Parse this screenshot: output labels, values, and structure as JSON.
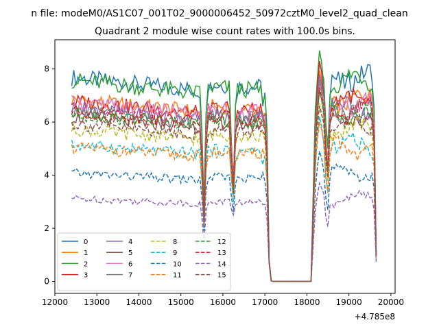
{
  "chart_data": {
    "type": "line",
    "suptitle": "n file: modeM0/AS1C07_001T02_9000006452_50972cztM0_level2_quad_clean",
    "title": "Quadrant 2 module wise count rates with 100.0s bins.",
    "xlabel": "",
    "ylabel": "",
    "x_offset_label": "+4.785e8",
    "xlim": [
      12000,
      20100
    ],
    "ylim": [
      -0.45,
      9.1
    ],
    "xticks": [
      12000,
      13000,
      14000,
      15000,
      16000,
      17000,
      18000,
      19000,
      20000
    ],
    "yticks": [
      0,
      2,
      4,
      6,
      8
    ],
    "grid": false,
    "legend": {
      "placement": "lower-left",
      "columns": 4
    },
    "series": [
      {
        "name": "0",
        "color": "#1f77b4",
        "dash": "solid",
        "base": 7.25,
        "dip": [
          2.7,
          3.3,
          6.6
        ],
        "peak": 8.3
      },
      {
        "name": "1",
        "color": "#ff7f0e",
        "dash": "solid",
        "base": 6.45,
        "dip": [
          2.4,
          3.6,
          6.3
        ],
        "peak": 7.95
      },
      {
        "name": "2",
        "color": "#2ca02c",
        "dash": "solid",
        "base": 7.15,
        "dip": [
          2.9,
          3.5,
          6.7
        ],
        "peak": 8.7
      },
      {
        "name": "3",
        "color": "#d62728",
        "dash": "solid",
        "base": 6.4,
        "dip": [
          2.6,
          3.8,
          6.2
        ],
        "peak": 8.3
      },
      {
        "name": "4",
        "color": "#9467bd",
        "dash": "solid",
        "base": 6.15,
        "dip": [
          2.3,
          3.4,
          6.1
        ],
        "peak": 7.8
      },
      {
        "name": "5",
        "color": "#8c564b",
        "dash": "solid",
        "base": 5.85,
        "dip": [
          2.4,
          3.5,
          5.9
        ],
        "peak": 7.2
      },
      {
        "name": "6",
        "color": "#e377c2",
        "dash": "solid",
        "base": 6.35,
        "dip": [
          2.5,
          3.7,
          6.2
        ],
        "peak": 7.5
      },
      {
        "name": "7",
        "color": "#7f7f7f",
        "dash": "solid",
        "base": 6.05,
        "dip": [
          2.4,
          3.5,
          6.3
        ],
        "peak": 7.6
      },
      {
        "name": "8",
        "color": "#bcbd22",
        "dash": "dashed",
        "base": 5.4,
        "dip": [
          2.1,
          3.4,
          5.6
        ],
        "peak": 6.7
      },
      {
        "name": "9",
        "color": "#17becf",
        "dash": "dashed",
        "base": 4.85,
        "dip": [
          2.0,
          3.0,
          4.4
        ],
        "peak": 6.2
      },
      {
        "name": "10",
        "color": "#1f77b4",
        "dash": "dashed",
        "base": 3.85,
        "dip": [
          1.9,
          2.6,
          4.1
        ],
        "peak": 4.9
      },
      {
        "name": "11",
        "color": "#ff7f0e",
        "dash": "dashed",
        "base": 4.75,
        "dip": [
          2.1,
          3.2,
          5.0
        ],
        "peak": 6.0
      },
      {
        "name": "12",
        "color": "#2ca02c",
        "dash": "dashed",
        "base": 5.95,
        "dip": [
          2.3,
          3.4,
          6.0
        ],
        "peak": 7.2
      },
      {
        "name": "13",
        "color": "#d62728",
        "dash": "dashed",
        "base": 6.05,
        "dip": [
          2.4,
          3.6,
          6.1
        ],
        "peak": 7.3
      },
      {
        "name": "14",
        "color": "#9467bd",
        "dash": "dashed",
        "base": 2.95,
        "dip": [
          1.4,
          2.5,
          2.9
        ],
        "peak": 3.7
      },
      {
        "name": "15",
        "color": "#8c564b",
        "dash": "dashed",
        "base": 5.6,
        "dip": [
          2.2,
          3.3,
          5.7
        ],
        "peak": 6.6
      }
    ]
  }
}
